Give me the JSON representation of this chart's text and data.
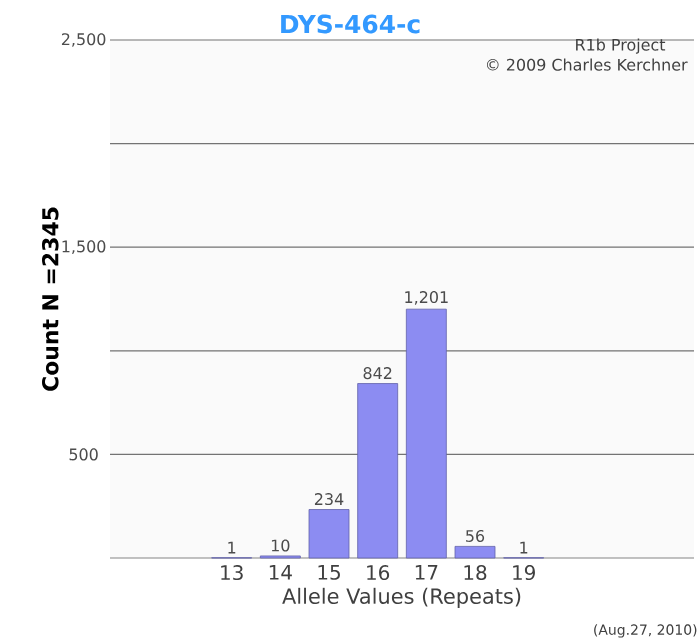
{
  "chart_data": {
    "type": "bar",
    "title": "DYS-464-c",
    "xlabel": "Allele Values (Repeats)",
    "ylabel": "Count N =2345",
    "categories": [
      "13",
      "14",
      "15",
      "16",
      "17",
      "18",
      "19"
    ],
    "values": [
      1,
      10,
      234,
      842,
      1201,
      56,
      1
    ],
    "value_labels": [
      "1",
      "10",
      "234",
      "842",
      "1,201",
      "56",
      "1"
    ],
    "color": "#8c8cf2",
    "ylim": [
      0,
      2500
    ],
    "yticks": [
      {
        "value": 500,
        "label": "500"
      },
      {
        "value": 1000,
        "label": null
      },
      {
        "value": 1500,
        "label": "1,500"
      },
      {
        "value": 2000,
        "label": null
      },
      {
        "value": 2500,
        "label": "2,500"
      }
    ],
    "grid": "y",
    "annotations": [
      "R1b Project",
      "© 2009 Charles Kerchner",
      "(Aug.27, 2010)"
    ]
  }
}
